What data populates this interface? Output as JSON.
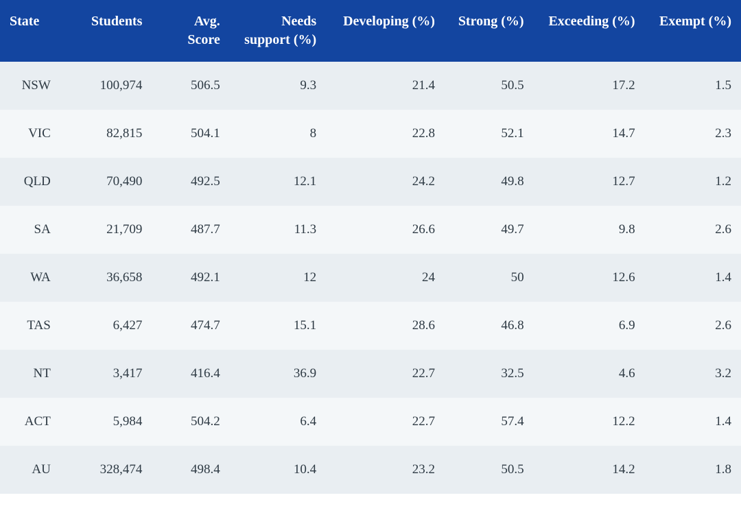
{
  "table": {
    "type": "table",
    "header_bg": "#1345a0",
    "header_text_color": "#ffffff",
    "row_odd_bg": "#e9eef2",
    "row_even_bg": "#f4f7f9",
    "cell_text_color": "#2e3a44",
    "header_fontsize_pt": 15,
    "cell_fontsize_pt": 14,
    "font_family": "Georgia, serif",
    "columns": [
      {
        "key": "state",
        "label": "State",
        "align": "left",
        "width_pct": 8.5
      },
      {
        "key": "students",
        "label": "Students",
        "align": "right",
        "width_pct": 12
      },
      {
        "key": "avg_score",
        "label": "Avg. Score",
        "align": "right",
        "width_pct": 10.5
      },
      {
        "key": "needs",
        "label": "Needs support (%)",
        "align": "right",
        "width_pct": 13
      },
      {
        "key": "developing",
        "label": "Developing (%)",
        "align": "right",
        "width_pct": 16
      },
      {
        "key": "strong",
        "label": "Strong (%)",
        "align": "right",
        "width_pct": 12
      },
      {
        "key": "exceeding",
        "label": "Exceeding (%)",
        "align": "right",
        "width_pct": 15
      },
      {
        "key": "exempt",
        "label": "Exempt (%)",
        "align": "right",
        "width_pct": 13
      }
    ],
    "rows": [
      {
        "state": "NSW",
        "students": "100,974",
        "avg_score": "506.5",
        "needs": "9.3",
        "developing": "21.4",
        "strong": "50.5",
        "exceeding": "17.2",
        "exempt": "1.5"
      },
      {
        "state": "VIC",
        "students": "82,815",
        "avg_score": "504.1",
        "needs": "8",
        "developing": "22.8",
        "strong": "52.1",
        "exceeding": "14.7",
        "exempt": "2.3"
      },
      {
        "state": "QLD",
        "students": "70,490",
        "avg_score": "492.5",
        "needs": "12.1",
        "developing": "24.2",
        "strong": "49.8",
        "exceeding": "12.7",
        "exempt": "1.2"
      },
      {
        "state": "SA",
        "students": "21,709",
        "avg_score": "487.7",
        "needs": "11.3",
        "developing": "26.6",
        "strong": "49.7",
        "exceeding": "9.8",
        "exempt": "2.6"
      },
      {
        "state": "WA",
        "students": "36,658",
        "avg_score": "492.1",
        "needs": "12",
        "developing": "24",
        "strong": "50",
        "exceeding": "12.6",
        "exempt": "1.4"
      },
      {
        "state": "TAS",
        "students": "6,427",
        "avg_score": "474.7",
        "needs": "15.1",
        "developing": "28.6",
        "strong": "46.8",
        "exceeding": "6.9",
        "exempt": "2.6"
      },
      {
        "state": "NT",
        "students": "3,417",
        "avg_score": "416.4",
        "needs": "36.9",
        "developing": "22.7",
        "strong": "32.5",
        "exceeding": "4.6",
        "exempt": "3.2"
      },
      {
        "state": "ACT",
        "students": "5,984",
        "avg_score": "504.2",
        "needs": "6.4",
        "developing": "22.7",
        "strong": "57.4",
        "exceeding": "12.2",
        "exempt": "1.4"
      },
      {
        "state": "AU",
        "students": "328,474",
        "avg_score": "498.4",
        "needs": "10.4",
        "developing": "23.2",
        "strong": "50.5",
        "exceeding": "14.2",
        "exempt": "1.8"
      }
    ]
  }
}
